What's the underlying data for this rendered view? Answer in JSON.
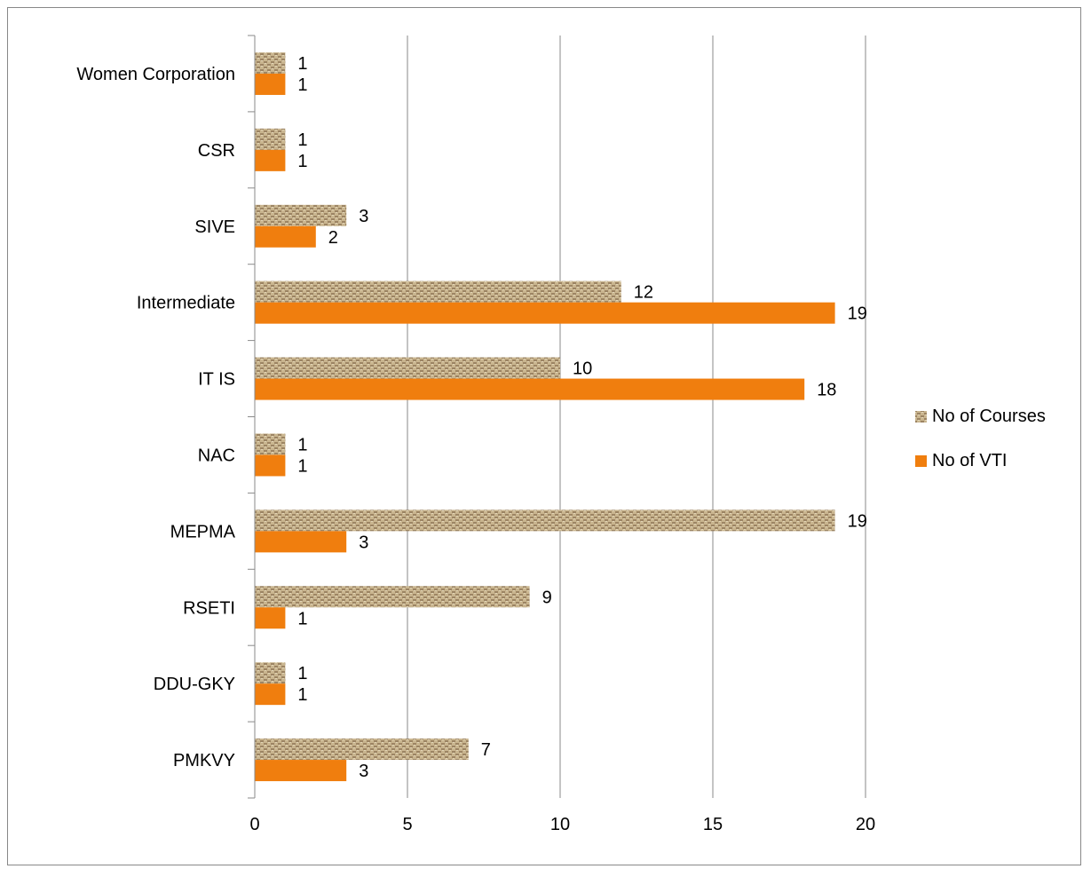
{
  "chart_data": {
    "type": "bar",
    "orientation": "horizontal",
    "title": "",
    "xlabel": "",
    "ylabel": "",
    "categories": [
      "PMKVY",
      "DDU-GKY",
      "RSETI",
      "MEPMA",
      "NAC",
      "IT IS",
      "Intermediate",
      "SIVE",
      "CSR",
      "Women Corporation"
    ],
    "series": [
      {
        "name": "No of Courses",
        "values": [
          7,
          1,
          9,
          19,
          1,
          10,
          12,
          3,
          1,
          1
        ],
        "color": "#c9b58f",
        "pattern": "woven-texture"
      },
      {
        "name": "No of VTI",
        "values": [
          3,
          1,
          1,
          3,
          1,
          18,
          19,
          2,
          1,
          1
        ],
        "color": "#f07e0e"
      }
    ],
    "xlim": [
      0,
      20
    ],
    "xticks": [
      0,
      5,
      10,
      15,
      20
    ],
    "grid": "vertical major gridlines",
    "legend_position": "right",
    "data_labels": true
  }
}
